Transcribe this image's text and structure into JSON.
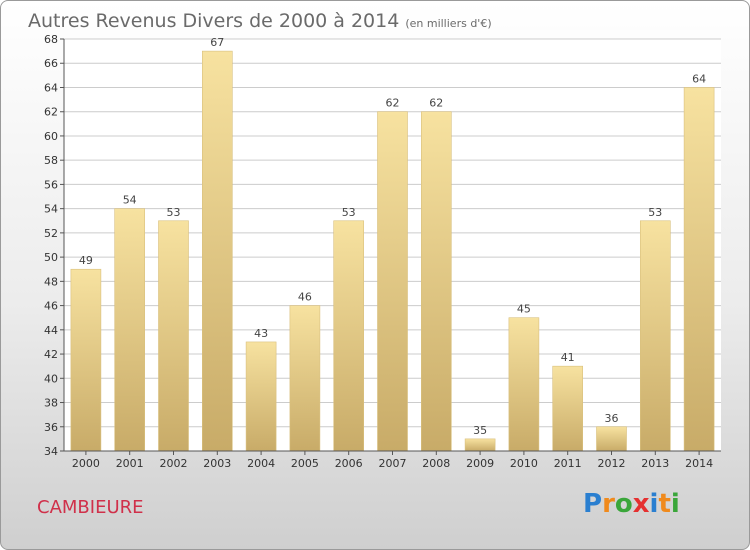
{
  "title": "Autres Revenus Divers de 2000 à 2014",
  "subtitle": "(en milliers d'€)",
  "commune": "CAMBIEURE",
  "logo": {
    "letters": [
      "P",
      "r",
      "o",
      "x",
      "i",
      "t",
      "i"
    ],
    "colors": [
      "#2a7fd0",
      "#f08a1c",
      "#3aa63a",
      "#e53030",
      "#2a7fd0",
      "#f08a1c",
      "#3aa63a"
    ]
  },
  "chart_data": {
    "type": "bar",
    "title": "Autres Revenus Divers de 2000 à 2014",
    "subtitle": "(en milliers d'€)",
    "categories": [
      "2000",
      "2001",
      "2002",
      "2003",
      "2004",
      "2005",
      "2006",
      "2007",
      "2008",
      "2009",
      "2010",
      "2011",
      "2012",
      "2013",
      "2014"
    ],
    "values": [
      49,
      54,
      53,
      67,
      43,
      46,
      53,
      62,
      62,
      35,
      45,
      41,
      36,
      53,
      64
    ],
    "ylim": [
      34,
      68
    ],
    "yticks": [
      34,
      36,
      38,
      40,
      42,
      44,
      46,
      48,
      50,
      52,
      54,
      56,
      58,
      60,
      62,
      64,
      66,
      68
    ],
    "grid": true,
    "colors": {
      "bar_top": "#f7e2a0",
      "bar_bottom": "#c8ab68",
      "grid": "#cccccc"
    }
  }
}
